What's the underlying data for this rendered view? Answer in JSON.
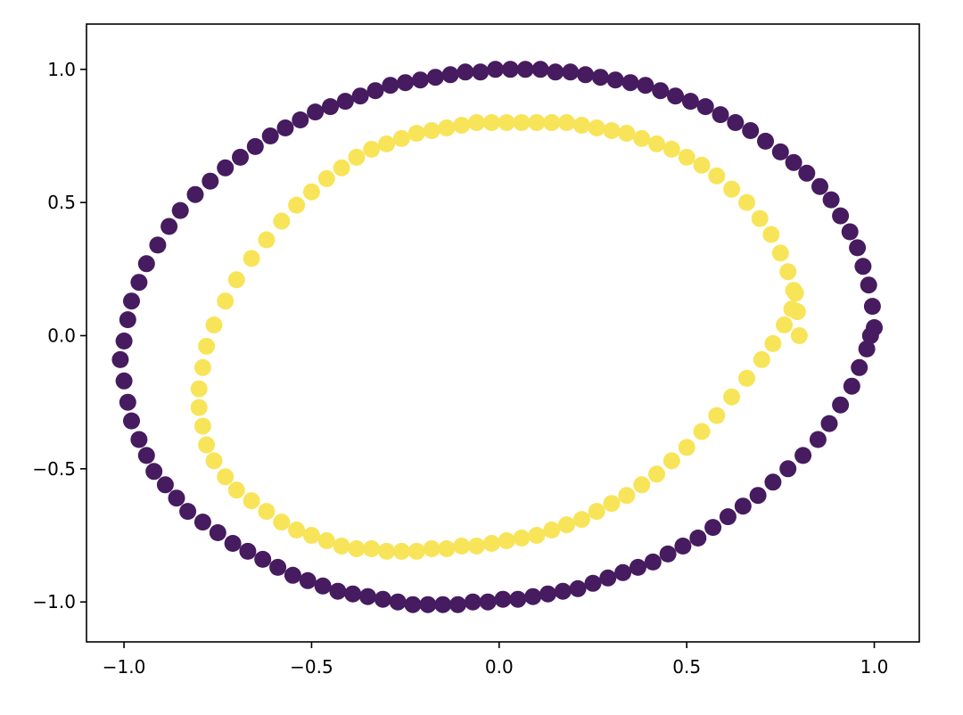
{
  "chart_data": {
    "type": "scatter",
    "title": "",
    "xlabel": "",
    "ylabel": "",
    "xlim": [
      -1.1,
      1.12
    ],
    "ylim": [
      -1.15,
      1.17
    ],
    "grid": false,
    "legend": "none",
    "x_ticks": [
      -1.0,
      -0.5,
      0.0,
      0.5,
      1.0
    ],
    "x_tick_labels": [
      "−1.0",
      "−0.5",
      "0.0",
      "0.5",
      "1.0"
    ],
    "y_ticks": [
      -1.0,
      -0.5,
      0.0,
      0.5,
      1.0
    ],
    "y_tick_labels": [
      "−1.0",
      "−0.5",
      "0.0",
      "0.5",
      "1.0"
    ],
    "colors": {
      "outer": "#461b5f",
      "inner": "#f8e459",
      "axis": "#000000",
      "background": "#ffffff"
    },
    "series": [
      {
        "class": 0,
        "color": "#461b5f",
        "x": [
          1.0,
          0.995,
          0.985,
          0.97,
          0.955,
          0.935,
          0.91,
          0.885,
          0.855,
          0.82,
          0.785,
          0.75,
          0.71,
          0.67,
          0.63,
          0.59,
          0.55,
          0.51,
          0.47,
          0.43,
          0.39,
          0.35,
          0.31,
          0.27,
          0.23,
          0.19,
          0.15,
          0.11,
          0.07,
          0.03,
          -0.01,
          -0.05,
          -0.09,
          -0.13,
          -0.17,
          -0.21,
          -0.25,
          -0.29,
          -0.33,
          -0.37,
          -0.41,
          -0.45,
          -0.49,
          -0.53,
          -0.57,
          -0.61,
          -0.65,
          -0.69,
          -0.73,
          -0.77,
          -0.81,
          -0.85,
          -0.88,
          -0.91,
          -0.94,
          -0.96,
          -0.98,
          -0.99,
          -1.0,
          -1.01,
          -1.0,
          -0.99,
          -0.98,
          -0.96,
          -0.94,
          -0.92,
          -0.89,
          -0.86,
          -0.83,
          -0.79,
          -0.75,
          -0.71,
          -0.67,
          -0.63,
          -0.59,
          -0.55,
          -0.51,
          -0.47,
          -0.43,
          -0.39,
          -0.35,
          -0.31,
          -0.27,
          -0.23,
          -0.19,
          -0.15,
          -0.11,
          -0.07,
          -0.03,
          0.01,
          0.05,
          0.09,
          0.13,
          0.17,
          0.21,
          0.25,
          0.29,
          0.33,
          0.37,
          0.41,
          0.45,
          0.49,
          0.53,
          0.57,
          0.61,
          0.65,
          0.69,
          0.73,
          0.77,
          0.81,
          0.85,
          0.88,
          0.91,
          0.94,
          0.96,
          0.98,
          0.99
        ],
        "y": [
          0.03,
          0.11,
          0.19,
          0.26,
          0.33,
          0.39,
          0.45,
          0.51,
          0.56,
          0.61,
          0.65,
          0.69,
          0.73,
          0.77,
          0.8,
          0.83,
          0.86,
          0.88,
          0.9,
          0.92,
          0.94,
          0.95,
          0.96,
          0.97,
          0.98,
          0.99,
          0.99,
          1.0,
          1.0,
          1.0,
          1.0,
          0.99,
          0.99,
          0.98,
          0.97,
          0.96,
          0.95,
          0.94,
          0.92,
          0.9,
          0.88,
          0.86,
          0.84,
          0.81,
          0.78,
          0.75,
          0.71,
          0.67,
          0.63,
          0.58,
          0.53,
          0.47,
          0.41,
          0.34,
          0.27,
          0.2,
          0.13,
          0.06,
          -0.02,
          -0.09,
          -0.17,
          -0.25,
          -0.32,
          -0.39,
          -0.45,
          -0.51,
          -0.56,
          -0.61,
          -0.66,
          -0.7,
          -0.74,
          -0.78,
          -0.81,
          -0.84,
          -0.87,
          -0.9,
          -0.92,
          -0.94,
          -0.96,
          -0.97,
          -0.98,
          -0.99,
          -1.0,
          -1.01,
          -1.01,
          -1.01,
          -1.01,
          -1.0,
          -1.0,
          -0.99,
          -0.99,
          -0.98,
          -0.97,
          -0.96,
          -0.95,
          -0.93,
          -0.91,
          -0.89,
          -0.87,
          -0.85,
          -0.82,
          -0.79,
          -0.76,
          -0.72,
          -0.68,
          -0.64,
          -0.6,
          -0.55,
          -0.5,
          -0.45,
          -0.39,
          -0.33,
          -0.26,
          -0.19,
          -0.12,
          -0.05,
          0.0
        ]
      },
      {
        "class": 1,
        "color": "#f8e459",
        "x": [
          0.8,
          0.795,
          0.785,
          0.77,
          0.75,
          0.725,
          0.695,
          0.66,
          0.62,
          0.58,
          0.54,
          0.5,
          0.46,
          0.42,
          0.38,
          0.34,
          0.3,
          0.26,
          0.22,
          0.18,
          0.14,
          0.1,
          0.06,
          0.02,
          -0.02,
          -0.06,
          -0.1,
          -0.14,
          -0.18,
          -0.22,
          -0.26,
          -0.3,
          -0.34,
          -0.38,
          -0.42,
          -0.46,
          -0.5,
          -0.54,
          -0.58,
          -0.62,
          -0.66,
          -0.7,
          -0.73,
          -0.76,
          -0.78,
          -0.79,
          -0.8,
          -0.8,
          -0.79,
          -0.78,
          -0.76,
          -0.73,
          -0.7,
          -0.66,
          -0.62,
          -0.58,
          -0.54,
          -0.5,
          -0.46,
          -0.42,
          -0.38,
          -0.34,
          -0.3,
          -0.26,
          -0.22,
          -0.18,
          -0.14,
          -0.1,
          -0.06,
          -0.02,
          0.02,
          0.06,
          0.1,
          0.14,
          0.18,
          0.22,
          0.26,
          0.3,
          0.34,
          0.38,
          0.42,
          0.46,
          0.5,
          0.54,
          0.58,
          0.62,
          0.66,
          0.7,
          0.73,
          0.76,
          0.78,
          0.79
        ],
        "y": [
          0.0,
          0.09,
          0.17,
          0.24,
          0.31,
          0.38,
          0.44,
          0.5,
          0.55,
          0.6,
          0.64,
          0.67,
          0.7,
          0.72,
          0.74,
          0.76,
          0.77,
          0.78,
          0.79,
          0.8,
          0.8,
          0.8,
          0.8,
          0.8,
          0.8,
          0.8,
          0.79,
          0.78,
          0.77,
          0.76,
          0.74,
          0.72,
          0.7,
          0.67,
          0.63,
          0.59,
          0.54,
          0.49,
          0.43,
          0.36,
          0.29,
          0.21,
          0.13,
          0.04,
          -0.04,
          -0.12,
          -0.2,
          -0.27,
          -0.34,
          -0.41,
          -0.47,
          -0.53,
          -0.58,
          -0.62,
          -0.66,
          -0.7,
          -0.73,
          -0.75,
          -0.77,
          -0.79,
          -0.8,
          -0.8,
          -0.81,
          -0.81,
          -0.81,
          -0.8,
          -0.8,
          -0.79,
          -0.79,
          -0.78,
          -0.77,
          -0.76,
          -0.75,
          -0.73,
          -0.71,
          -0.69,
          -0.66,
          -0.63,
          -0.6,
          -0.56,
          -0.52,
          -0.47,
          -0.42,
          -0.36,
          -0.3,
          -0.23,
          -0.16,
          -0.09,
          -0.03,
          0.04,
          0.1,
          0.16
        ]
      }
    ]
  }
}
